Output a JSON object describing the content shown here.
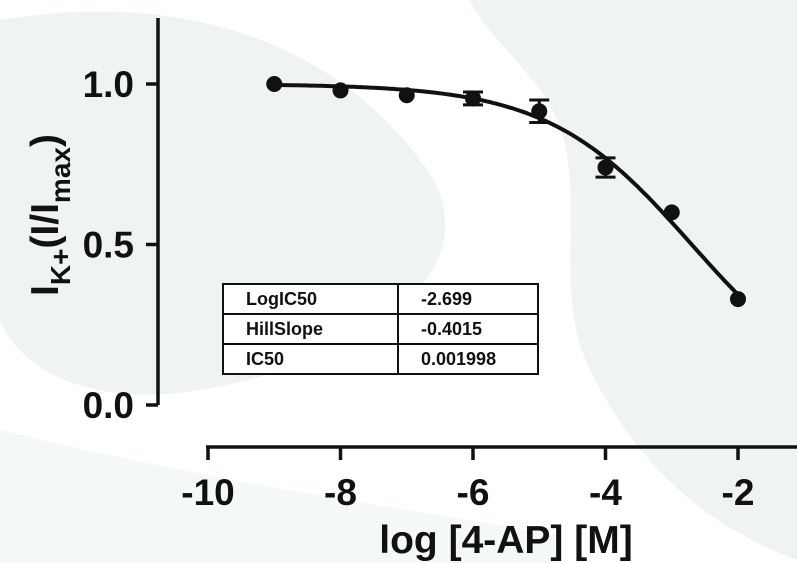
{
  "chart_data": {
    "type": "scatter",
    "xlabel": "log [4-AP] [M]",
    "ylabel": {
      "main": "I",
      "sub1": "K+",
      "mid": "(I/I",
      "sub2": "max",
      "end": ")"
    },
    "xlim": [
      -10,
      -2
    ],
    "ylim": [
      0.0,
      1.0
    ],
    "x_ticks": [
      -10,
      -8,
      -6,
      -4,
      -2
    ],
    "x_tick_labels": [
      "-10",
      "-8",
      "-6",
      "-4",
      "-2"
    ],
    "y_ticks": [
      0.0,
      0.5,
      1.0
    ],
    "y_tick_labels": [
      "0.0",
      "0.5",
      "1.0"
    ],
    "grid": false,
    "series": [
      {
        "x": [
          -9,
          -8,
          -7,
          -6,
          -5,
          -4,
          -3,
          -2
        ],
        "y": [
          1.0,
          0.98,
          0.965,
          0.955,
          0.915,
          0.74,
          0.6,
          0.33
        ],
        "error": [
          0,
          0,
          0,
          0.02,
          0.035,
          0.03,
          0,
          0
        ]
      }
    ],
    "fit": {
      "type": "sigmoid",
      "bottom": 0,
      "top": 1.0,
      "logIC50": -2.699,
      "hill_slope": -0.4015
    },
    "colors": {
      "marks": "#111111"
    },
    "table": [
      [
        "LogIC50",
        "-2.699"
      ],
      [
        "HillSlope",
        "-0.4015"
      ],
      [
        "IC50",
        "0.001998"
      ]
    ]
  }
}
